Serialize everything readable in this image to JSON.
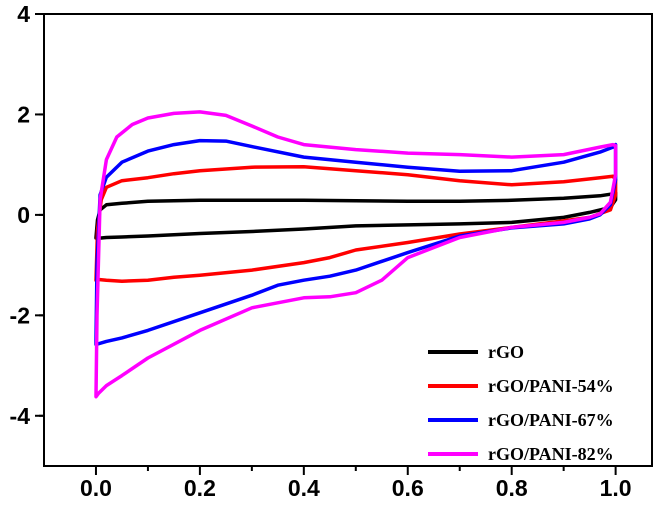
{
  "chart_data": {
    "type": "line",
    "title": "",
    "xlabel": "",
    "ylabel": "",
    "xlim": [
      -0.1,
      1.07
    ],
    "ylim": [
      -5,
      4
    ],
    "x_ticks": [
      0.0,
      0.2,
      0.4,
      0.6,
      0.8,
      1.0
    ],
    "x_tick_labels": [
      "0.0",
      "0.2",
      "0.4",
      "0.6",
      "0.8",
      "1.0"
    ],
    "y_ticks": [
      -4,
      -2,
      0,
      2,
      4
    ],
    "y_tick_labels": [
      "-4",
      "-2",
      "0",
      "2",
      "4"
    ],
    "grid": false,
    "legend_position": "bottom-right",
    "series": [
      {
        "name": "rGO",
        "color": "#000000",
        "x": [
          0.0,
          0.003,
          0.008,
          0.02,
          0.05,
          0.1,
          0.2,
          0.3,
          0.4,
          0.5,
          0.6,
          0.7,
          0.8,
          0.9,
          0.97,
          0.995,
          1.0,
          1.0,
          0.99,
          0.95,
          0.9,
          0.8,
          0.7,
          0.6,
          0.5,
          0.4,
          0.3,
          0.2,
          0.1,
          0.05,
          0.02,
          0.01,
          0.0,
          0.0
        ],
        "y": [
          -0.45,
          -0.1,
          0.1,
          0.2,
          0.23,
          0.27,
          0.29,
          0.29,
          0.29,
          0.28,
          0.27,
          0.27,
          0.29,
          0.33,
          0.38,
          0.42,
          0.44,
          0.3,
          0.15,
          0.05,
          -0.05,
          -0.15,
          -0.18,
          -0.2,
          -0.22,
          -0.28,
          -0.33,
          -0.37,
          -0.42,
          -0.44,
          -0.45,
          -0.46,
          -0.46,
          -0.45
        ]
      },
      {
        "name": "rGO/PANI-54%",
        "color": "#ff0000",
        "x": [
          0.0,
          0.003,
          0.01,
          0.02,
          0.05,
          0.1,
          0.15,
          0.2,
          0.3,
          0.4,
          0.5,
          0.6,
          0.7,
          0.8,
          0.9,
          0.97,
          0.995,
          1.0,
          1.0,
          0.99,
          0.95,
          0.9,
          0.8,
          0.7,
          0.6,
          0.5,
          0.45,
          0.4,
          0.3,
          0.2,
          0.15,
          0.1,
          0.05,
          0.02,
          0.0,
          0.0
        ],
        "y": [
          -1.3,
          -0.3,
          0.3,
          0.55,
          0.68,
          0.74,
          0.82,
          0.88,
          0.95,
          0.96,
          0.88,
          0.8,
          0.68,
          0.6,
          0.66,
          0.74,
          0.77,
          0.7,
          0.4,
          0.1,
          -0.05,
          -0.12,
          -0.25,
          -0.38,
          -0.55,
          -0.7,
          -0.85,
          -0.95,
          -1.1,
          -1.2,
          -1.24,
          -1.3,
          -1.32,
          -1.3,
          -1.28,
          -1.3
        ]
      },
      {
        "name": "rGO/PANI-67%",
        "color": "#0000ff",
        "x": [
          0.0,
          0.002,
          0.008,
          0.02,
          0.05,
          0.1,
          0.15,
          0.2,
          0.25,
          0.3,
          0.4,
          0.5,
          0.6,
          0.7,
          0.8,
          0.9,
          0.97,
          0.995,
          1.0,
          1.0,
          0.99,
          0.97,
          0.95,
          0.9,
          0.8,
          0.7,
          0.6,
          0.5,
          0.45,
          0.4,
          0.35,
          0.3,
          0.2,
          0.1,
          0.05,
          0.02,
          0.0,
          0.0
        ],
        "y": [
          -2.5,
          -1.0,
          0.4,
          0.75,
          1.05,
          1.27,
          1.4,
          1.48,
          1.47,
          1.36,
          1.15,
          1.05,
          0.95,
          0.87,
          0.88,
          1.05,
          1.25,
          1.35,
          1.4,
          0.7,
          0.2,
          0.0,
          -0.08,
          -0.18,
          -0.26,
          -0.42,
          -0.75,
          -1.1,
          -1.22,
          -1.3,
          -1.4,
          -1.6,
          -1.95,
          -2.3,
          -2.45,
          -2.52,
          -2.58,
          -2.5
        ]
      },
      {
        "name": "rGO/PANI-82%",
        "color": "#ff00ff",
        "x": [
          0.0,
          0.002,
          0.008,
          0.02,
          0.04,
          0.07,
          0.1,
          0.15,
          0.2,
          0.25,
          0.3,
          0.35,
          0.4,
          0.5,
          0.6,
          0.7,
          0.8,
          0.9,
          0.97,
          0.995,
          1.0,
          1.0,
          0.99,
          0.97,
          0.95,
          0.9,
          0.8,
          0.7,
          0.6,
          0.55,
          0.5,
          0.45,
          0.4,
          0.3,
          0.2,
          0.1,
          0.05,
          0.02,
          0.005,
          0.0,
          0.0
        ],
        "y": [
          -3.6,
          -2.0,
          0.3,
          1.1,
          1.55,
          1.8,
          1.93,
          2.02,
          2.05,
          1.98,
          1.77,
          1.55,
          1.4,
          1.3,
          1.23,
          1.2,
          1.15,
          1.2,
          1.35,
          1.4,
          1.38,
          0.8,
          0.25,
          0.02,
          -0.05,
          -0.15,
          -0.25,
          -0.45,
          -0.85,
          -1.3,
          -1.55,
          -1.63,
          -1.65,
          -1.85,
          -2.3,
          -2.85,
          -3.2,
          -3.4,
          -3.55,
          -3.62,
          -3.6
        ]
      }
    ]
  }
}
